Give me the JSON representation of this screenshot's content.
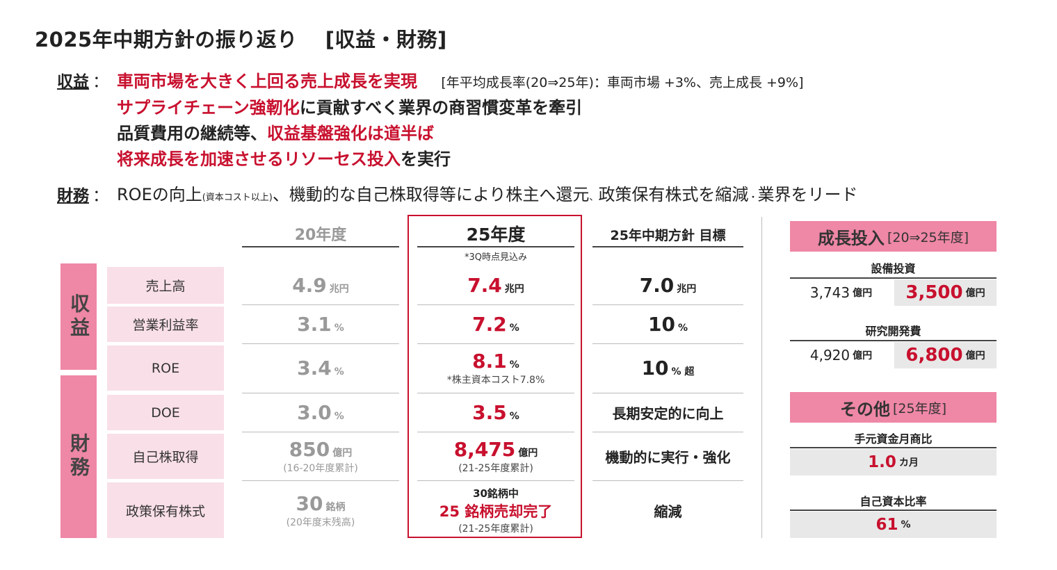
{
  "title": "2025年中期方針の振り返り",
  "title_sub": "[収益・財務]",
  "revenue": {
    "label": "収益",
    "colon": "：",
    "line1_red": "車両市場を大きく上回る売上成長を実現",
    "line1_note": "[年平均成長率(20⇒25年)：車両市場 +3%、売上成長 +9%]",
    "line2_red": "サプライチェーン強靭化",
    "line2_rest": "に貢献すべく業界の商習慣変革を牽引",
    "line3_black": "品質費用の継続等、",
    "line3_red": "収益基盤強化は道半ば",
    "line4_red": "将来成長を加速させるリソーセス投入",
    "line4_rest": "を実行"
  },
  "finance": {
    "label": "財務",
    "colon": "：",
    "text1": "ROEの向上",
    "small1": "(資本コスト以上)",
    "text2": "、機動的な自己株取得等により株主へ還元",
    "small2": "、",
    "text3": "政策保有株式を縮減",
    "small3": "・",
    "text4": "業界をリード"
  },
  "table": {
    "col_2020": "20年度",
    "col_2025": "25年度",
    "col_2025_note": "*3Q時点見込み",
    "col_target": "25年中期方針 目標",
    "cat_revenue": "収益",
    "cat_finance": "財務",
    "rows": [
      {
        "label": "売上高",
        "v20": "4.9",
        "u20": "兆円",
        "v25": "7.4",
        "u25": "兆円",
        "vt": "7.0",
        "ut": "兆円"
      },
      {
        "label": "営業利益率",
        "v20": "3.1",
        "u20": "%",
        "v25": "7.2",
        "u25": "%",
        "vt": "10",
        "ut": "%"
      },
      {
        "label": "ROE",
        "v20": "3.4",
        "u20": "%",
        "v25": "8.1",
        "u25": "%",
        "n25": "*株主資本コスト7.8%",
        "vt": "10",
        "ut": "% 超"
      },
      {
        "label": "DOE",
        "v20": "3.0",
        "u20": "%",
        "v25": "3.5",
        "u25": "%",
        "t_text": "長期安定的に向上"
      },
      {
        "label": "自己株取得",
        "v20": "850",
        "u20": "億円",
        "n20": "(16-20年度累計)",
        "v25": "8,475",
        "u25": "億円",
        "n25": "(21-25年度累計)",
        "t_text": "機動的に実行・強化"
      },
      {
        "label": "政策保有株式",
        "v20": "30",
        "u20": "銘柄",
        "n20": "(20年度末残高)",
        "pre25": "30銘柄中",
        "v25": "25 銘柄売却完了",
        "n25": "(21-25年度累計)",
        "t_text": "縮減"
      }
    ]
  },
  "panel": {
    "growth_title": "成長投入",
    "growth_sub": "[20⇒25年度]",
    "capex_label": "設備投資",
    "capex_old": "3,743",
    "capex_new": "3,500",
    "rnd_label": "研究開発費",
    "rnd_old": "4,920",
    "rnd_new": "6,800",
    "unit_oku": "億円",
    "other_title": "その他",
    "other_sub": "[25年度]",
    "cash_label": "手元資金月商比",
    "cash_value": "1.0",
    "cash_unit": "カ月",
    "equity_label": "自己資本比率",
    "equity_value": "61",
    "equity_unit": "%"
  }
}
